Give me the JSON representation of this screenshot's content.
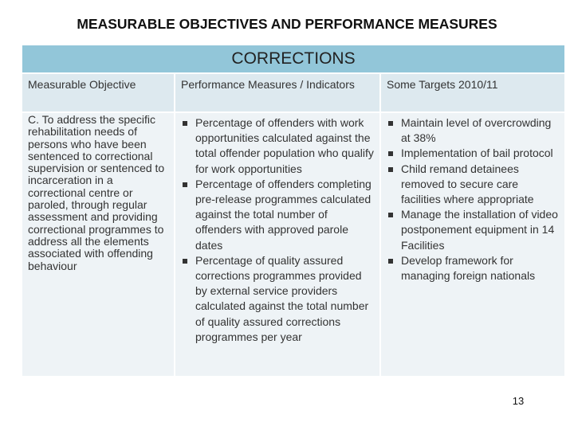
{
  "header": {
    "title": "MEASURABLE OBJECTIVES AND PERFORMANCE MEASURES"
  },
  "table": {
    "banner": "CORRECTIONS",
    "headers": [
      "Measurable Objective",
      "Performance Measures / Indicators",
      "Some Targets 2010/11"
    ],
    "rows": [
      [
        "C. To address the specific rehabilitation needs of persons who have been sentenced to correctional supervision or sentenced to incarceration in a correctional centre or paroled, through regular assessment and providing  correctional programmes to address all the elements associated with offending behaviour",
        [
          "Percentage of offenders with work opportunities calculated against the total offender population who qualify for work opportunities",
          "Percentage of offenders completing pre-release programmes calculated against the total number of offenders with approved parole dates",
          "Percentage of quality assured corrections programmes provided by external service providers calculated against the total number of quality assured corrections programmes per year"
        ],
        [
          "Maintain level of overcrowding at 38%",
          "Implementation of bail protocol",
          "Child remand detainees removed to secure care facilities where appropriate",
          "Manage the installation of video postponement equipment in 14 Facilities",
          "Develop framework for managing foreign nationals"
        ]
      ]
    ]
  },
  "footer": {
    "page_number": "13"
  }
}
